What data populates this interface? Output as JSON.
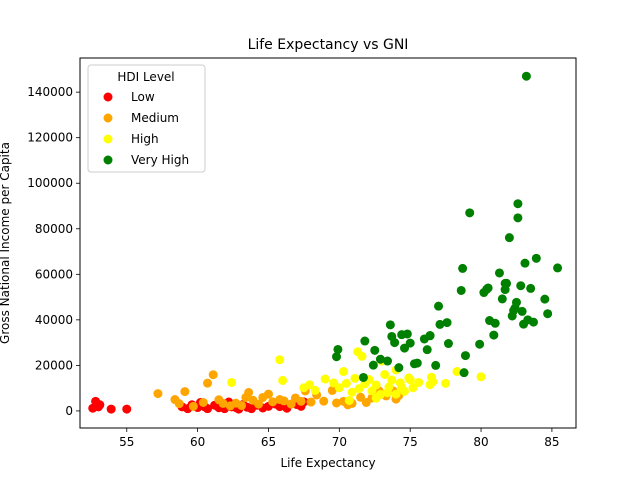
{
  "chart_data": {
    "type": "scatter",
    "title": "Life Expectancy vs GNI",
    "xlabel": "Life Expectancy",
    "ylabel": "Gross National Income per Capita",
    "xlim": [
      51.7,
      86.7
    ],
    "ylim": [
      -7500,
      155000
    ],
    "xticks": [
      55,
      60,
      65,
      70,
      75,
      80,
      85
    ],
    "yticks": [
      0,
      20000,
      40000,
      60000,
      80000,
      100000,
      120000,
      140000
    ],
    "legend": {
      "title": "HDI Level",
      "position": "top-left"
    },
    "series": [
      {
        "name": "Low",
        "color": "#ff0000",
        "points": [
          [
            52.6,
            1200
          ],
          [
            52.8,
            4200
          ],
          [
            53.1,
            2700
          ],
          [
            53.0,
            1800
          ],
          [
            53.9,
            800
          ],
          [
            55.0,
            800
          ],
          [
            58.9,
            1800
          ],
          [
            59.3,
            1000
          ],
          [
            59.6,
            2700
          ],
          [
            60.0,
            1500
          ],
          [
            60.2,
            3700
          ],
          [
            60.5,
            1800
          ],
          [
            60.7,
            1000
          ],
          [
            61.2,
            2500
          ],
          [
            61.5,
            1400
          ],
          [
            61.7,
            2900
          ],
          [
            61.9,
            1000
          ],
          [
            62.1,
            2300
          ],
          [
            62.2,
            3900
          ],
          [
            62.4,
            1800
          ],
          [
            62.7,
            1500
          ],
          [
            62.9,
            800
          ],
          [
            63.2,
            2800
          ],
          [
            63.5,
            1600
          ],
          [
            63.8,
            1000
          ],
          [
            64.2,
            2500
          ],
          [
            64.6,
            1300
          ],
          [
            65.0,
            2000
          ],
          [
            65.5,
            3000
          ],
          [
            65.8,
            1900
          ],
          [
            66.1,
            4200
          ],
          [
            66.3,
            1200
          ],
          [
            67.0,
            2800
          ],
          [
            67.3,
            2000
          ],
          [
            67.5,
            4000
          ]
        ]
      },
      {
        "name": "Medium",
        "color": "#ffa500",
        "points": [
          [
            57.2,
            7600
          ],
          [
            58.4,
            5000
          ],
          [
            58.7,
            3200
          ],
          [
            59.1,
            8500
          ],
          [
            59.7,
            2000
          ],
          [
            60.4,
            3700
          ],
          [
            60.7,
            12200
          ],
          [
            61.1,
            15900
          ],
          [
            61.5,
            4900
          ],
          [
            61.8,
            3300
          ],
          [
            62.3,
            2200
          ],
          [
            62.7,
            3400
          ],
          [
            63.1,
            2400
          ],
          [
            63.4,
            5900
          ],
          [
            63.6,
            8100
          ],
          [
            63.9,
            4700
          ],
          [
            64.3,
            3000
          ],
          [
            64.6,
            5900
          ],
          [
            65.0,
            7400
          ],
          [
            65.3,
            4000
          ],
          [
            65.8,
            5000
          ],
          [
            66.1,
            4400
          ],
          [
            66.6,
            3000
          ],
          [
            66.9,
            5700
          ],
          [
            67.3,
            4200
          ],
          [
            67.6,
            8800
          ],
          [
            68.0,
            3900
          ],
          [
            68.4,
            7000
          ],
          [
            68.9,
            4300
          ],
          [
            69.5,
            9000
          ],
          [
            69.8,
            3500
          ],
          [
            70.3,
            4200
          ],
          [
            70.6,
            2700
          ],
          [
            70.9,
            3300
          ],
          [
            71.5,
            6000
          ],
          [
            71.9,
            3700
          ],
          [
            72.3,
            5700
          ],
          [
            72.8,
            8800
          ],
          [
            73.3,
            6600
          ],
          [
            73.8,
            8800
          ],
          [
            74.2,
            6800
          ],
          [
            74.0,
            5200
          ]
        ]
      },
      {
        "name": "High",
        "color": "#ffff00",
        "points": [
          [
            62.4,
            12500
          ],
          [
            65.8,
            22500
          ],
          [
            66.0,
            13400
          ],
          [
            67.5,
            10200
          ],
          [
            67.9,
            11500
          ],
          [
            68.3,
            9000
          ],
          [
            69.0,
            14000
          ],
          [
            69.6,
            12300
          ],
          [
            70.0,
            10200
          ],
          [
            70.3,
            17300
          ],
          [
            70.5,
            12100
          ],
          [
            70.9,
            8200
          ],
          [
            71.1,
            14300
          ],
          [
            71.3,
            26000
          ],
          [
            71.6,
            24000
          ],
          [
            71.8,
            11900
          ],
          [
            72.1,
            13800
          ],
          [
            72.3,
            8800
          ],
          [
            72.6,
            11400
          ],
          [
            72.9,
            7200
          ],
          [
            73.2,
            16000
          ],
          [
            73.5,
            10500
          ],
          [
            73.7,
            13600
          ],
          [
            74.0,
            18000
          ],
          [
            74.3,
            12300
          ],
          [
            74.6,
            8600
          ],
          [
            74.9,
            14500
          ],
          [
            75.2,
            10200
          ],
          [
            75.6,
            12500
          ],
          [
            76.4,
            11500
          ],
          [
            76.5,
            14800
          ],
          [
            77.5,
            12100
          ],
          [
            78.3,
            17300
          ],
          [
            80.0,
            15000
          ],
          [
            70.7,
            4600
          ],
          [
            71.4,
            9800
          ],
          [
            72.6,
            5600
          ],
          [
            73.0,
            21900
          ],
          [
            74.0,
            7400
          ],
          [
            74.4,
            10300
          ],
          [
            76.6,
            12800
          ],
          [
            75.0,
            13700
          ],
          [
            73.4,
            8000
          ]
        ]
      },
      {
        "name": "Very High",
        "color": "#008000",
        "points": [
          [
            69.8,
            23800
          ],
          [
            69.9,
            27000
          ],
          [
            71.7,
            14700
          ],
          [
            71.8,
            30700
          ],
          [
            72.4,
            20100
          ],
          [
            72.5,
            26600
          ],
          [
            72.9,
            22700
          ],
          [
            73.4,
            21900
          ],
          [
            73.6,
            37800
          ],
          [
            73.7,
            32700
          ],
          [
            73.9,
            30000
          ],
          [
            74.2,
            19000
          ],
          [
            74.6,
            27600
          ],
          [
            74.8,
            33800
          ],
          [
            75.0,
            29800
          ],
          [
            75.3,
            20700
          ],
          [
            75.5,
            21000
          ],
          [
            76.0,
            31600
          ],
          [
            76.2,
            26900
          ],
          [
            76.4,
            33100
          ],
          [
            76.8,
            20000
          ],
          [
            77.0,
            46000
          ],
          [
            77.1,
            38000
          ],
          [
            77.6,
            38800
          ],
          [
            77.7,
            29600
          ],
          [
            78.6,
            52900
          ],
          [
            78.7,
            62600
          ],
          [
            78.8,
            16800
          ],
          [
            78.9,
            24300
          ],
          [
            79.2,
            87000
          ],
          [
            79.9,
            29300
          ],
          [
            80.2,
            52000
          ],
          [
            80.5,
            54000
          ],
          [
            80.6,
            39700
          ],
          [
            80.9,
            33300
          ],
          [
            81.0,
            38500
          ],
          [
            81.3,
            60600
          ],
          [
            81.5,
            49200
          ],
          [
            81.7,
            53300
          ],
          [
            81.8,
            56000
          ],
          [
            82.0,
            76100
          ],
          [
            82.2,
            41700
          ],
          [
            82.4,
            45200
          ],
          [
            82.5,
            47700
          ],
          [
            82.6,
            84800
          ],
          [
            82.6,
            91000
          ],
          [
            82.8,
            55000
          ],
          [
            82.9,
            43700
          ],
          [
            83.1,
            64900
          ],
          [
            83.3,
            40000
          ],
          [
            83.5,
            53800
          ],
          [
            83.7,
            39000
          ],
          [
            83.9,
            67000
          ],
          [
            84.5,
            49100
          ],
          [
            84.7,
            42700
          ],
          [
            85.4,
            62800
          ],
          [
            83.2,
            147000
          ],
          [
            74.4,
            33500
          ],
          [
            76.4,
            33000
          ],
          [
            81.7,
            56000
          ],
          [
            82.3,
            44100
          ],
          [
            83.0,
            38100
          ],
          [
            80.4,
            53400
          ]
        ]
      }
    ]
  }
}
